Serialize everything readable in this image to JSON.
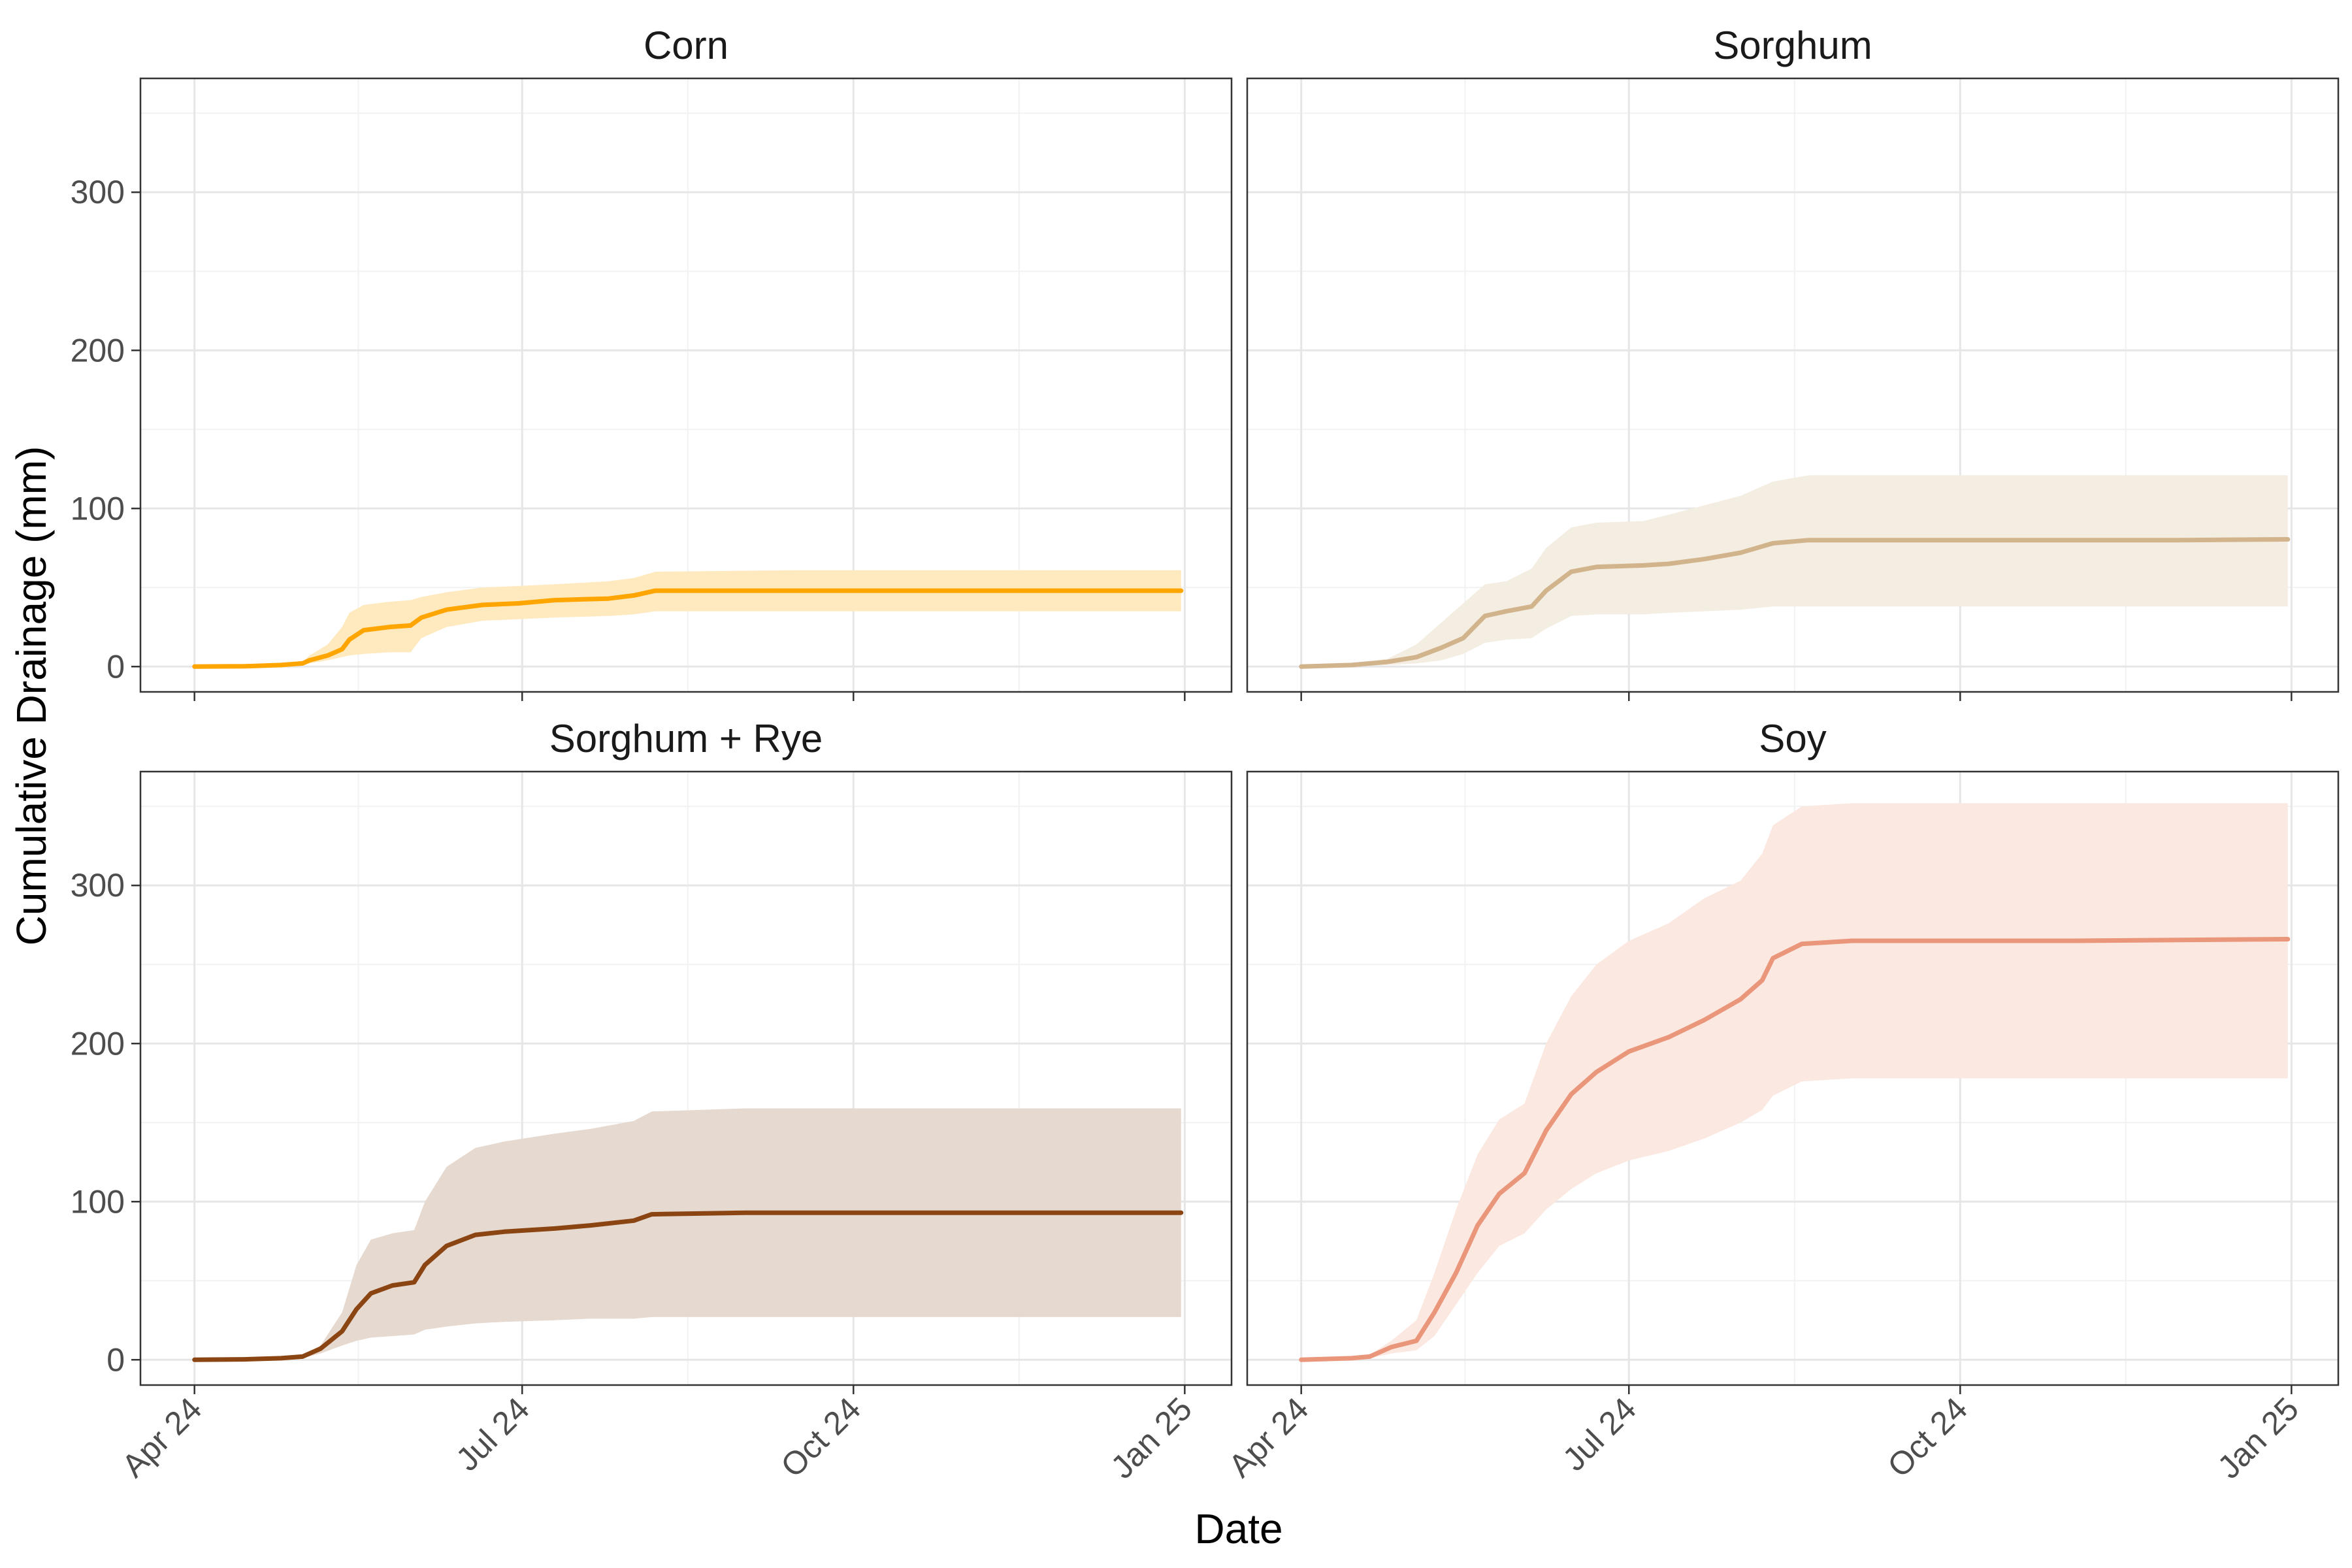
{
  "figure": {
    "xlabel": "Date",
    "ylabel": "Cumulative Drainage (mm)"
  },
  "chart_data": {
    "type": "line",
    "layout": "2x2 facets with shared axes",
    "xlabel": "Date",
    "ylabel": "Cumulative Drainage (mm)",
    "x_ticks": [
      {
        "date": "2024-04-01",
        "label": "Apr 24"
      },
      {
        "date": "2024-07-01",
        "label": "Jul 24"
      },
      {
        "date": "2024-10-01",
        "label": "Oct 24"
      },
      {
        "date": "2025-01-01",
        "label": "Jan 25"
      }
    ],
    "xlim": [
      "2024-03-17",
      "2025-01-14"
    ],
    "ylim": [
      -16,
      372
    ],
    "y_ticks": [
      0,
      100,
      200,
      300
    ],
    "grid": true,
    "legend": "none",
    "band": "shaded uncertainty range around each line",
    "panels": [
      {
        "title": "Corn",
        "color": "#FFA500",
        "band_color": "#FFE9BF",
        "series": [
          {
            "date": "2024-04-01",
            "y": 0,
            "lo": 0,
            "hi": 0
          },
          {
            "date": "2024-04-15",
            "y": 0.2,
            "lo": 0,
            "hi": 0.5
          },
          {
            "date": "2024-04-25",
            "y": 1,
            "lo": 0.3,
            "hi": 2
          },
          {
            "date": "2024-05-01",
            "y": 2,
            "lo": 1,
            "hi": 3
          },
          {
            "date": "2024-05-03",
            "y": 4,
            "lo": 2,
            "hi": 7
          },
          {
            "date": "2024-05-08",
            "y": 7,
            "lo": 4,
            "hi": 14
          },
          {
            "date": "2024-05-12",
            "y": 11,
            "lo": 6,
            "hi": 25
          },
          {
            "date": "2024-05-14",
            "y": 17,
            "lo": 7,
            "hi": 34
          },
          {
            "date": "2024-05-18",
            "y": 23,
            "lo": 8,
            "hi": 39
          },
          {
            "date": "2024-05-25",
            "y": 25,
            "lo": 9,
            "hi": 41
          },
          {
            "date": "2024-05-31",
            "y": 26,
            "lo": 9,
            "hi": 42
          },
          {
            "date": "2024-06-03",
            "y": 31,
            "lo": 18,
            "hi": 44
          },
          {
            "date": "2024-06-10",
            "y": 36,
            "lo": 25,
            "hi": 47
          },
          {
            "date": "2024-06-20",
            "y": 39,
            "lo": 29,
            "hi": 50
          },
          {
            "date": "2024-06-30",
            "y": 40,
            "lo": 30,
            "hi": 51
          },
          {
            "date": "2024-07-10",
            "y": 42,
            "lo": 31,
            "hi": 52
          },
          {
            "date": "2024-07-25",
            "y": 43,
            "lo": 32,
            "hi": 54
          },
          {
            "date": "2024-08-01",
            "y": 45,
            "lo": 33,
            "hi": 56
          },
          {
            "date": "2024-08-07",
            "y": 48,
            "lo": 35,
            "hi": 60
          },
          {
            "date": "2024-09-15",
            "y": 48,
            "lo": 35,
            "hi": 61
          },
          {
            "date": "2024-11-01",
            "y": 48,
            "lo": 35,
            "hi": 61
          },
          {
            "date": "2024-12-31",
            "y": 48,
            "lo": 35,
            "hi": 61
          }
        ]
      },
      {
        "title": "Sorghum",
        "color": "#D2B48C",
        "band_color": "#F4EDE2",
        "series": [
          {
            "date": "2024-04-01",
            "y": 0,
            "lo": 0,
            "hi": 0
          },
          {
            "date": "2024-04-15",
            "y": 1,
            "lo": 0,
            "hi": 1
          },
          {
            "date": "2024-04-25",
            "y": 3,
            "lo": 1,
            "hi": 5
          },
          {
            "date": "2024-05-03",
            "y": 6,
            "lo": 2,
            "hi": 14
          },
          {
            "date": "2024-05-10",
            "y": 12,
            "lo": 4,
            "hi": 28
          },
          {
            "date": "2024-05-16",
            "y": 18,
            "lo": 8,
            "hi": 40
          },
          {
            "date": "2024-05-22",
            "y": 32,
            "lo": 15,
            "hi": 52
          },
          {
            "date": "2024-05-28",
            "y": 35,
            "lo": 17,
            "hi": 54
          },
          {
            "date": "2024-06-04",
            "y": 38,
            "lo": 18,
            "hi": 62
          },
          {
            "date": "2024-06-08",
            "y": 48,
            "lo": 24,
            "hi": 75
          },
          {
            "date": "2024-06-15",
            "y": 60,
            "lo": 32,
            "hi": 88
          },
          {
            "date": "2024-06-22",
            "y": 63,
            "lo": 33,
            "hi": 91
          },
          {
            "date": "2024-07-05",
            "y": 64,
            "lo": 33,
            "hi": 92
          },
          {
            "date": "2024-07-12",
            "y": 65,
            "lo": 34,
            "hi": 96
          },
          {
            "date": "2024-07-22",
            "y": 68,
            "lo": 35,
            "hi": 102
          },
          {
            "date": "2024-08-01",
            "y": 72,
            "lo": 36,
            "hi": 108
          },
          {
            "date": "2024-08-10",
            "y": 78,
            "lo": 38,
            "hi": 117
          },
          {
            "date": "2024-08-20",
            "y": 80,
            "lo": 38,
            "hi": 121
          },
          {
            "date": "2024-10-01",
            "y": 80,
            "lo": 38,
            "hi": 121
          },
          {
            "date": "2024-12-01",
            "y": 80,
            "lo": 38,
            "hi": 121
          },
          {
            "date": "2024-12-31",
            "y": 80.5,
            "lo": 38,
            "hi": 121
          }
        ]
      },
      {
        "title": "Sorghum + Rye",
        "color": "#8B4513",
        "band_color": "#E6D9D0",
        "series": [
          {
            "date": "2024-04-01",
            "y": 0,
            "lo": 0,
            "hi": 0
          },
          {
            "date": "2024-04-15",
            "y": 0.3,
            "lo": 0,
            "hi": 0.5
          },
          {
            "date": "2024-04-25",
            "y": 1,
            "lo": 0.5,
            "hi": 2
          },
          {
            "date": "2024-05-01",
            "y": 2,
            "lo": 1,
            "hi": 3
          },
          {
            "date": "2024-05-06",
            "y": 7,
            "lo": 4,
            "hi": 9
          },
          {
            "date": "2024-05-12",
            "y": 18,
            "lo": 9,
            "hi": 30
          },
          {
            "date": "2024-05-16",
            "y": 32,
            "lo": 12,
            "hi": 60
          },
          {
            "date": "2024-05-20",
            "y": 42,
            "lo": 14,
            "hi": 76
          },
          {
            "date": "2024-05-26",
            "y": 47,
            "lo": 15,
            "hi": 80
          },
          {
            "date": "2024-06-01",
            "y": 49,
            "lo": 16,
            "hi": 82
          },
          {
            "date": "2024-06-04",
            "y": 60,
            "lo": 19,
            "hi": 100
          },
          {
            "date": "2024-06-10",
            "y": 72,
            "lo": 21,
            "hi": 122
          },
          {
            "date": "2024-06-18",
            "y": 79,
            "lo": 23,
            "hi": 134
          },
          {
            "date": "2024-06-26",
            "y": 81,
            "lo": 24,
            "hi": 138
          },
          {
            "date": "2024-07-10",
            "y": 83,
            "lo": 25,
            "hi": 143
          },
          {
            "date": "2024-07-20",
            "y": 85,
            "lo": 26,
            "hi": 146
          },
          {
            "date": "2024-08-01",
            "y": 88,
            "lo": 26,
            "hi": 151
          },
          {
            "date": "2024-08-06",
            "y": 92,
            "lo": 27,
            "hi": 157
          },
          {
            "date": "2024-09-01",
            "y": 93,
            "lo": 27,
            "hi": 159
          },
          {
            "date": "2024-11-01",
            "y": 93,
            "lo": 27,
            "hi": 159
          },
          {
            "date": "2024-12-31",
            "y": 93,
            "lo": 27,
            "hi": 159
          }
        ]
      },
      {
        "title": "Soy",
        "color": "#E9967A",
        "band_color": "#FBE8E1",
        "series": [
          {
            "date": "2024-04-01",
            "y": 0,
            "lo": 0,
            "hi": 0
          },
          {
            "date": "2024-04-15",
            "y": 1,
            "lo": 0,
            "hi": 2
          },
          {
            "date": "2024-04-20",
            "y": 2,
            "lo": 1,
            "hi": 3
          },
          {
            "date": "2024-04-26",
            "y": 8,
            "lo": 4,
            "hi": 12
          },
          {
            "date": "2024-05-03",
            "y": 12,
            "lo": 6,
            "hi": 25
          },
          {
            "date": "2024-05-08",
            "y": 30,
            "lo": 15,
            "hi": 55
          },
          {
            "date": "2024-05-14",
            "y": 55,
            "lo": 35,
            "hi": 95
          },
          {
            "date": "2024-05-20",
            "y": 85,
            "lo": 55,
            "hi": 130
          },
          {
            "date": "2024-05-26",
            "y": 105,
            "lo": 72,
            "hi": 152
          },
          {
            "date": "2024-06-02",
            "y": 118,
            "lo": 80,
            "hi": 162
          },
          {
            "date": "2024-06-08",
            "y": 145,
            "lo": 95,
            "hi": 200
          },
          {
            "date": "2024-06-15",
            "y": 168,
            "lo": 108,
            "hi": 230
          },
          {
            "date": "2024-06-22",
            "y": 182,
            "lo": 118,
            "hi": 250
          },
          {
            "date": "2024-07-01",
            "y": 195,
            "lo": 126,
            "hi": 265
          },
          {
            "date": "2024-07-12",
            "y": 204,
            "lo": 132,
            "hi": 276
          },
          {
            "date": "2024-07-22",
            "y": 215,
            "lo": 140,
            "hi": 292
          },
          {
            "date": "2024-08-01",
            "y": 228,
            "lo": 150,
            "hi": 303
          },
          {
            "date": "2024-08-07",
            "y": 240,
            "lo": 158,
            "hi": 320
          },
          {
            "date": "2024-08-10",
            "y": 254,
            "lo": 167,
            "hi": 338
          },
          {
            "date": "2024-08-18",
            "y": 263,
            "lo": 176,
            "hi": 350
          },
          {
            "date": "2024-09-01",
            "y": 265,
            "lo": 178,
            "hi": 352
          },
          {
            "date": "2024-11-01",
            "y": 265,
            "lo": 178,
            "hi": 352
          },
          {
            "date": "2024-12-31",
            "y": 266,
            "lo": 178,
            "hi": 352
          }
        ]
      }
    ]
  }
}
